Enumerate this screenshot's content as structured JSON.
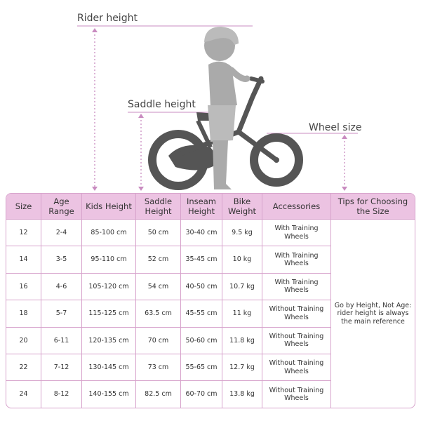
{
  "labels": {
    "rider_height": "Rider height",
    "saddle_height": "Saddle height",
    "wheel_size": "Wheel size"
  },
  "table": {
    "headers": [
      "Size",
      "Age Range",
      "Kids Height",
      "Saddle Height",
      "Inseam Height",
      "Bike Weight",
      "Accessories",
      "Tips for Choosing the Size"
    ],
    "rows": [
      [
        "12",
        "2-4",
        "85-100 cm",
        "50 cm",
        "30-40 cm",
        "9.5 kg",
        "With Training Wheels"
      ],
      [
        "14",
        "3-5",
        "95-110 cm",
        "52 cm",
        "35-45 cm",
        "10 kg",
        "With Training Wheels"
      ],
      [
        "16",
        "4-6",
        "105-120 cm",
        "54 cm",
        "40-50 cm",
        "10.7 kg",
        "With Training Wheels"
      ],
      [
        "18",
        "5-7",
        "115-125 cm",
        "63.5 cm",
        "45-55 cm",
        "11 kg",
        "Without Training Wheels"
      ],
      [
        "20",
        "6-11",
        "120-135 cm",
        "70 cm",
        "50-60 cm",
        "11.8 kg",
        "Without Training Wheels"
      ],
      [
        "22",
        "7-12",
        "130-145 cm",
        "73 cm",
        "55-65 cm",
        "12.7 kg",
        "Without Training Wheels"
      ],
      [
        "24",
        "8-12",
        "140-155 cm",
        "82.5 cm",
        "60-70 cm",
        "13.8 kg",
        "Without Training Wheels"
      ]
    ],
    "tips": "Go by Height, Not Age: rider height is always the main reference"
  }
}
